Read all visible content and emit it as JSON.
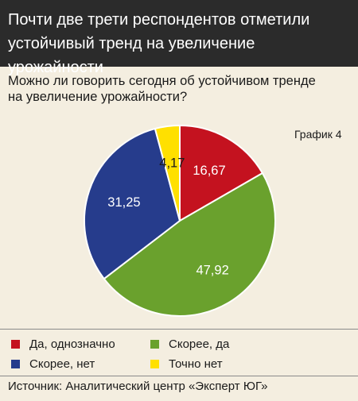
{
  "header": {
    "line1": "Почти две трети респондентов отметили",
    "line2": "устойчивый тренд на увеличение урожайности"
  },
  "question": {
    "line1": "Можно ли говорить сегодня об устойчивом тренде",
    "line2": "на увеличение урожайности?"
  },
  "graph_label": "График 4",
  "chart_data": {
    "type": "pie",
    "slices": [
      {
        "label": "Да, однозначно",
        "value": 16.67,
        "display": "16,67",
        "color": "#c4121f",
        "label_color": "#ffffff"
      },
      {
        "label": "Скорее, да",
        "value": 47.92,
        "display": "47,92",
        "color": "#6aa12d",
        "label_color": "#ffffff"
      },
      {
        "label": "Скорее, нет",
        "value": 31.25,
        "display": "31,25",
        "color": "#263c8c",
        "label_color": "#ffffff"
      },
      {
        "label": "Точно нет",
        "value": 4.17,
        "display": "4,17",
        "color": "#ffe000",
        "label_color": "#1a1a1a"
      }
    ],
    "legend_placement": "bottom"
  },
  "source": "Источник: Аналитический центр «Эксперт ЮГ»"
}
